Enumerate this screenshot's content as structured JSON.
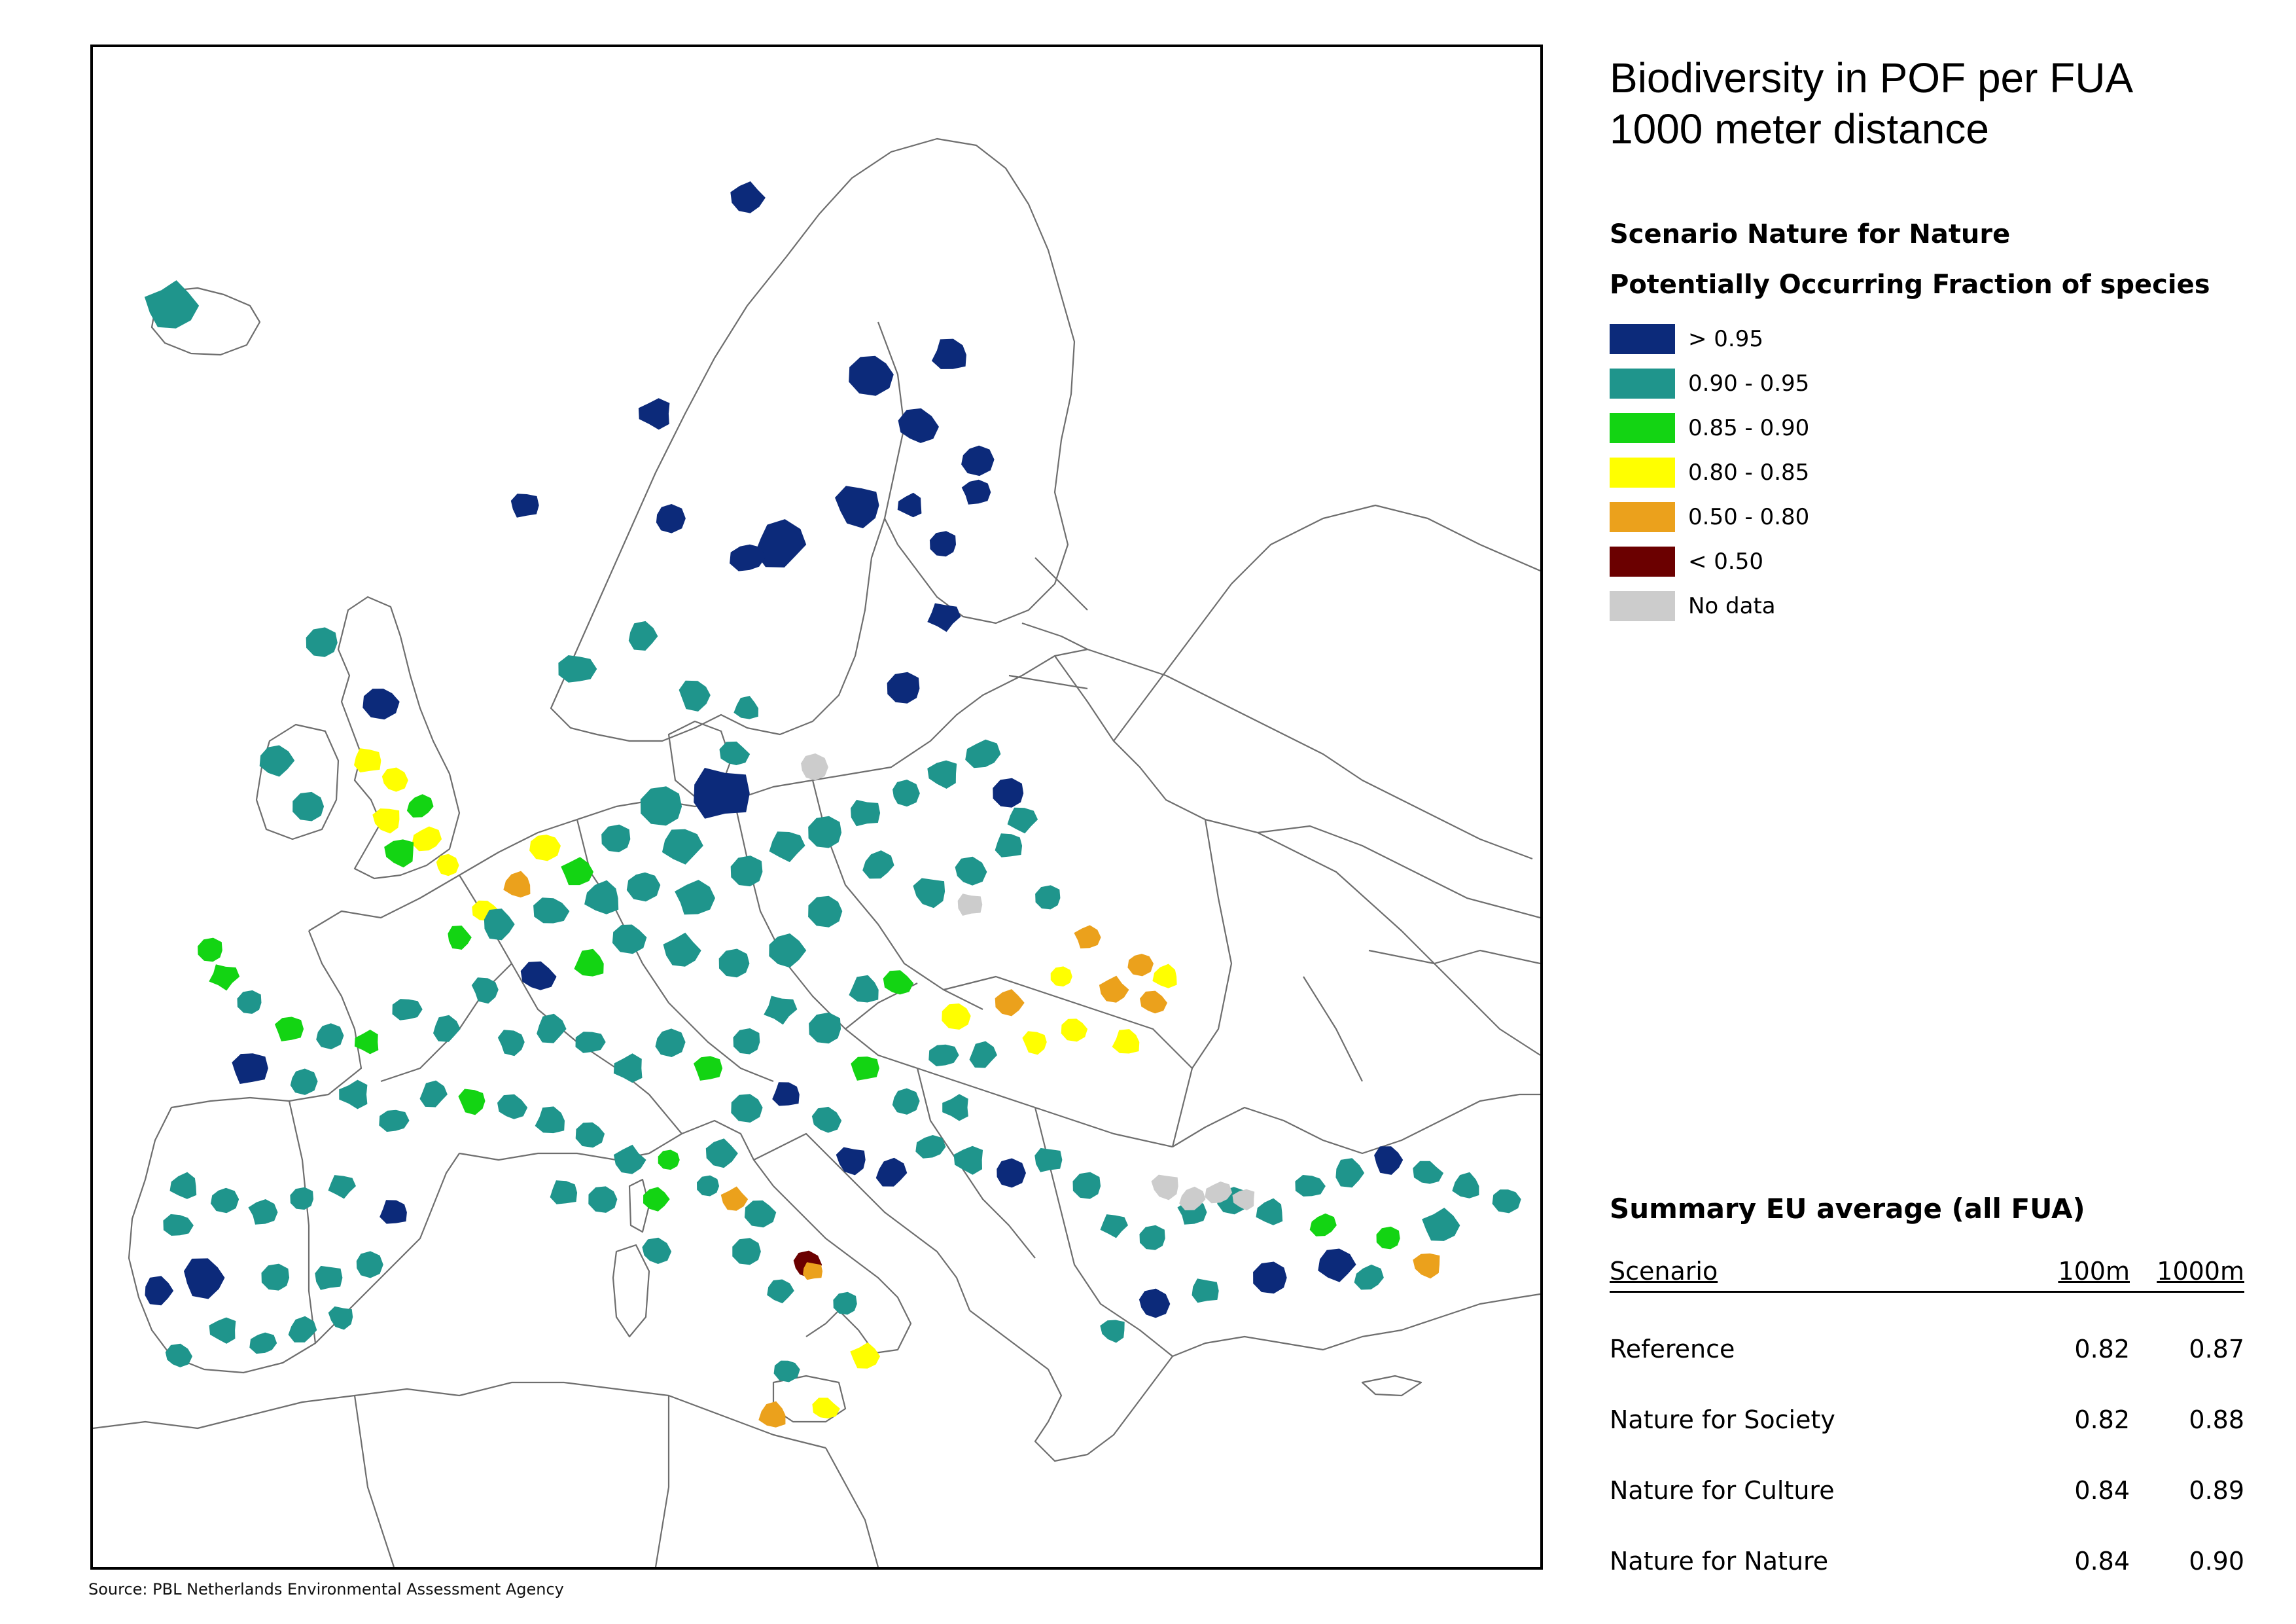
{
  "title_line1": "Biodiversity in POF per FUA",
  "title_line2": "1000 meter distance",
  "scenario_title": "Scenario Nature for Nature",
  "indicator_title": "Potentially Occurring Fraction of species",
  "legend": [
    {
      "label": "> 0.95",
      "color": "#0c2a7a"
    },
    {
      "label": "0.90 - 0.95",
      "color": "#1f958c"
    },
    {
      "label": "0.85 - 0.90",
      "color": "#13d413"
    },
    {
      "label": "0.80 - 0.85",
      "color": "#ffff00"
    },
    {
      "label": "0.50 - 0.80",
      "color": "#eba11c"
    },
    {
      "label": "< 0.50",
      "color": "#6b0000"
    },
    {
      "label": "No data",
      "color": "#cccccc"
    }
  ],
  "summary": {
    "title": "Summary EU average (all FUA)",
    "headers": {
      "scenario": "Scenario",
      "col_a": "100m",
      "col_b": "1000m"
    },
    "rows": [
      {
        "scenario": "Reference",
        "col_a": "0.82",
        "col_b": "0.87"
      },
      {
        "scenario": "Nature for Society",
        "col_a": "0.82",
        "col_b": "0.88"
      },
      {
        "scenario": "Nature for Culture",
        "col_a": "0.84",
        "col_b": "0.89"
      },
      {
        "scenario": "Nature for Nature",
        "col_a": "0.84",
        "col_b": "0.90"
      }
    ]
  },
  "source": "Source: PBL Netherlands Environmental Assessment Agency",
  "map": {
    "colors": {
      "outline": "#6e6e6e",
      "land": "#ffffff",
      "sea": "#ffffff"
    }
  }
}
